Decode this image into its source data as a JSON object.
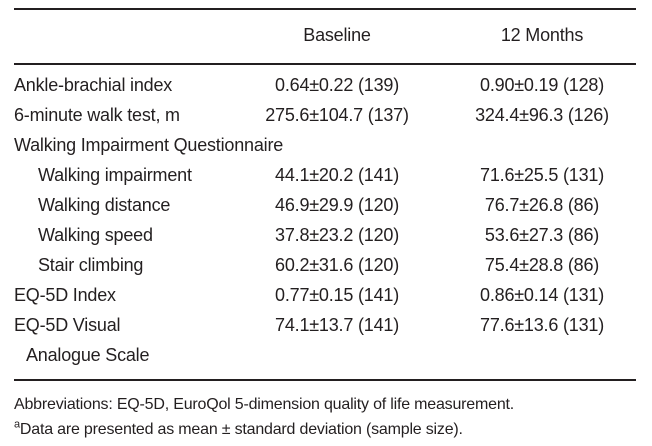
{
  "style": {
    "text_color": "#231f20",
    "rule_color": "#231f20",
    "background": "#ffffff"
  },
  "table": {
    "header": {
      "label_col": "",
      "baseline_col": "Baseline",
      "months_col": "12 Months"
    },
    "rows": [
      {
        "label": "Ankle-brachial index",
        "baseline": "0.64±0.22 (139)",
        "months": "0.90±0.19 (128)"
      },
      {
        "label": "6-minute walk test, m",
        "baseline": "275.6±104.7 (137)",
        "months": "324.4±96.3 (126)"
      },
      {
        "label": "Walking Impairment Questionnaire",
        "baseline": "",
        "months": ""
      },
      {
        "label": "Walking impairment",
        "baseline": "44.1±20.2 (141)",
        "months": "71.6±25.5 (131)"
      },
      {
        "label": "Walking distance",
        "baseline": "46.9±29.9 (120)",
        "months": "76.7±26.8 (86)"
      },
      {
        "label": "Walking speed",
        "baseline": "37.8±23.2 (120)",
        "months": "53.6±27.3 (86)"
      },
      {
        "label": "Stair climbing",
        "baseline": "60.2±31.6 (120)",
        "months": "75.4±28.8 (86)"
      },
      {
        "label": "EQ-5D Index",
        "baseline": "0.77±0.15 (141)",
        "months": "0.86±0.14 (131)"
      },
      {
        "label": "EQ-5D Visual",
        "label_line2": "Analogue Scale",
        "baseline": "74.1±13.7 (141)",
        "months": "77.6±13.6 (131)"
      }
    ]
  },
  "footnotes": {
    "abbreviations": "Abbreviations: EQ-5D, EuroQol 5-dimension quality of life measurement.",
    "data_note_marker": "a",
    "data_note": "Data are presented as mean ± standard deviation (sample size)."
  }
}
